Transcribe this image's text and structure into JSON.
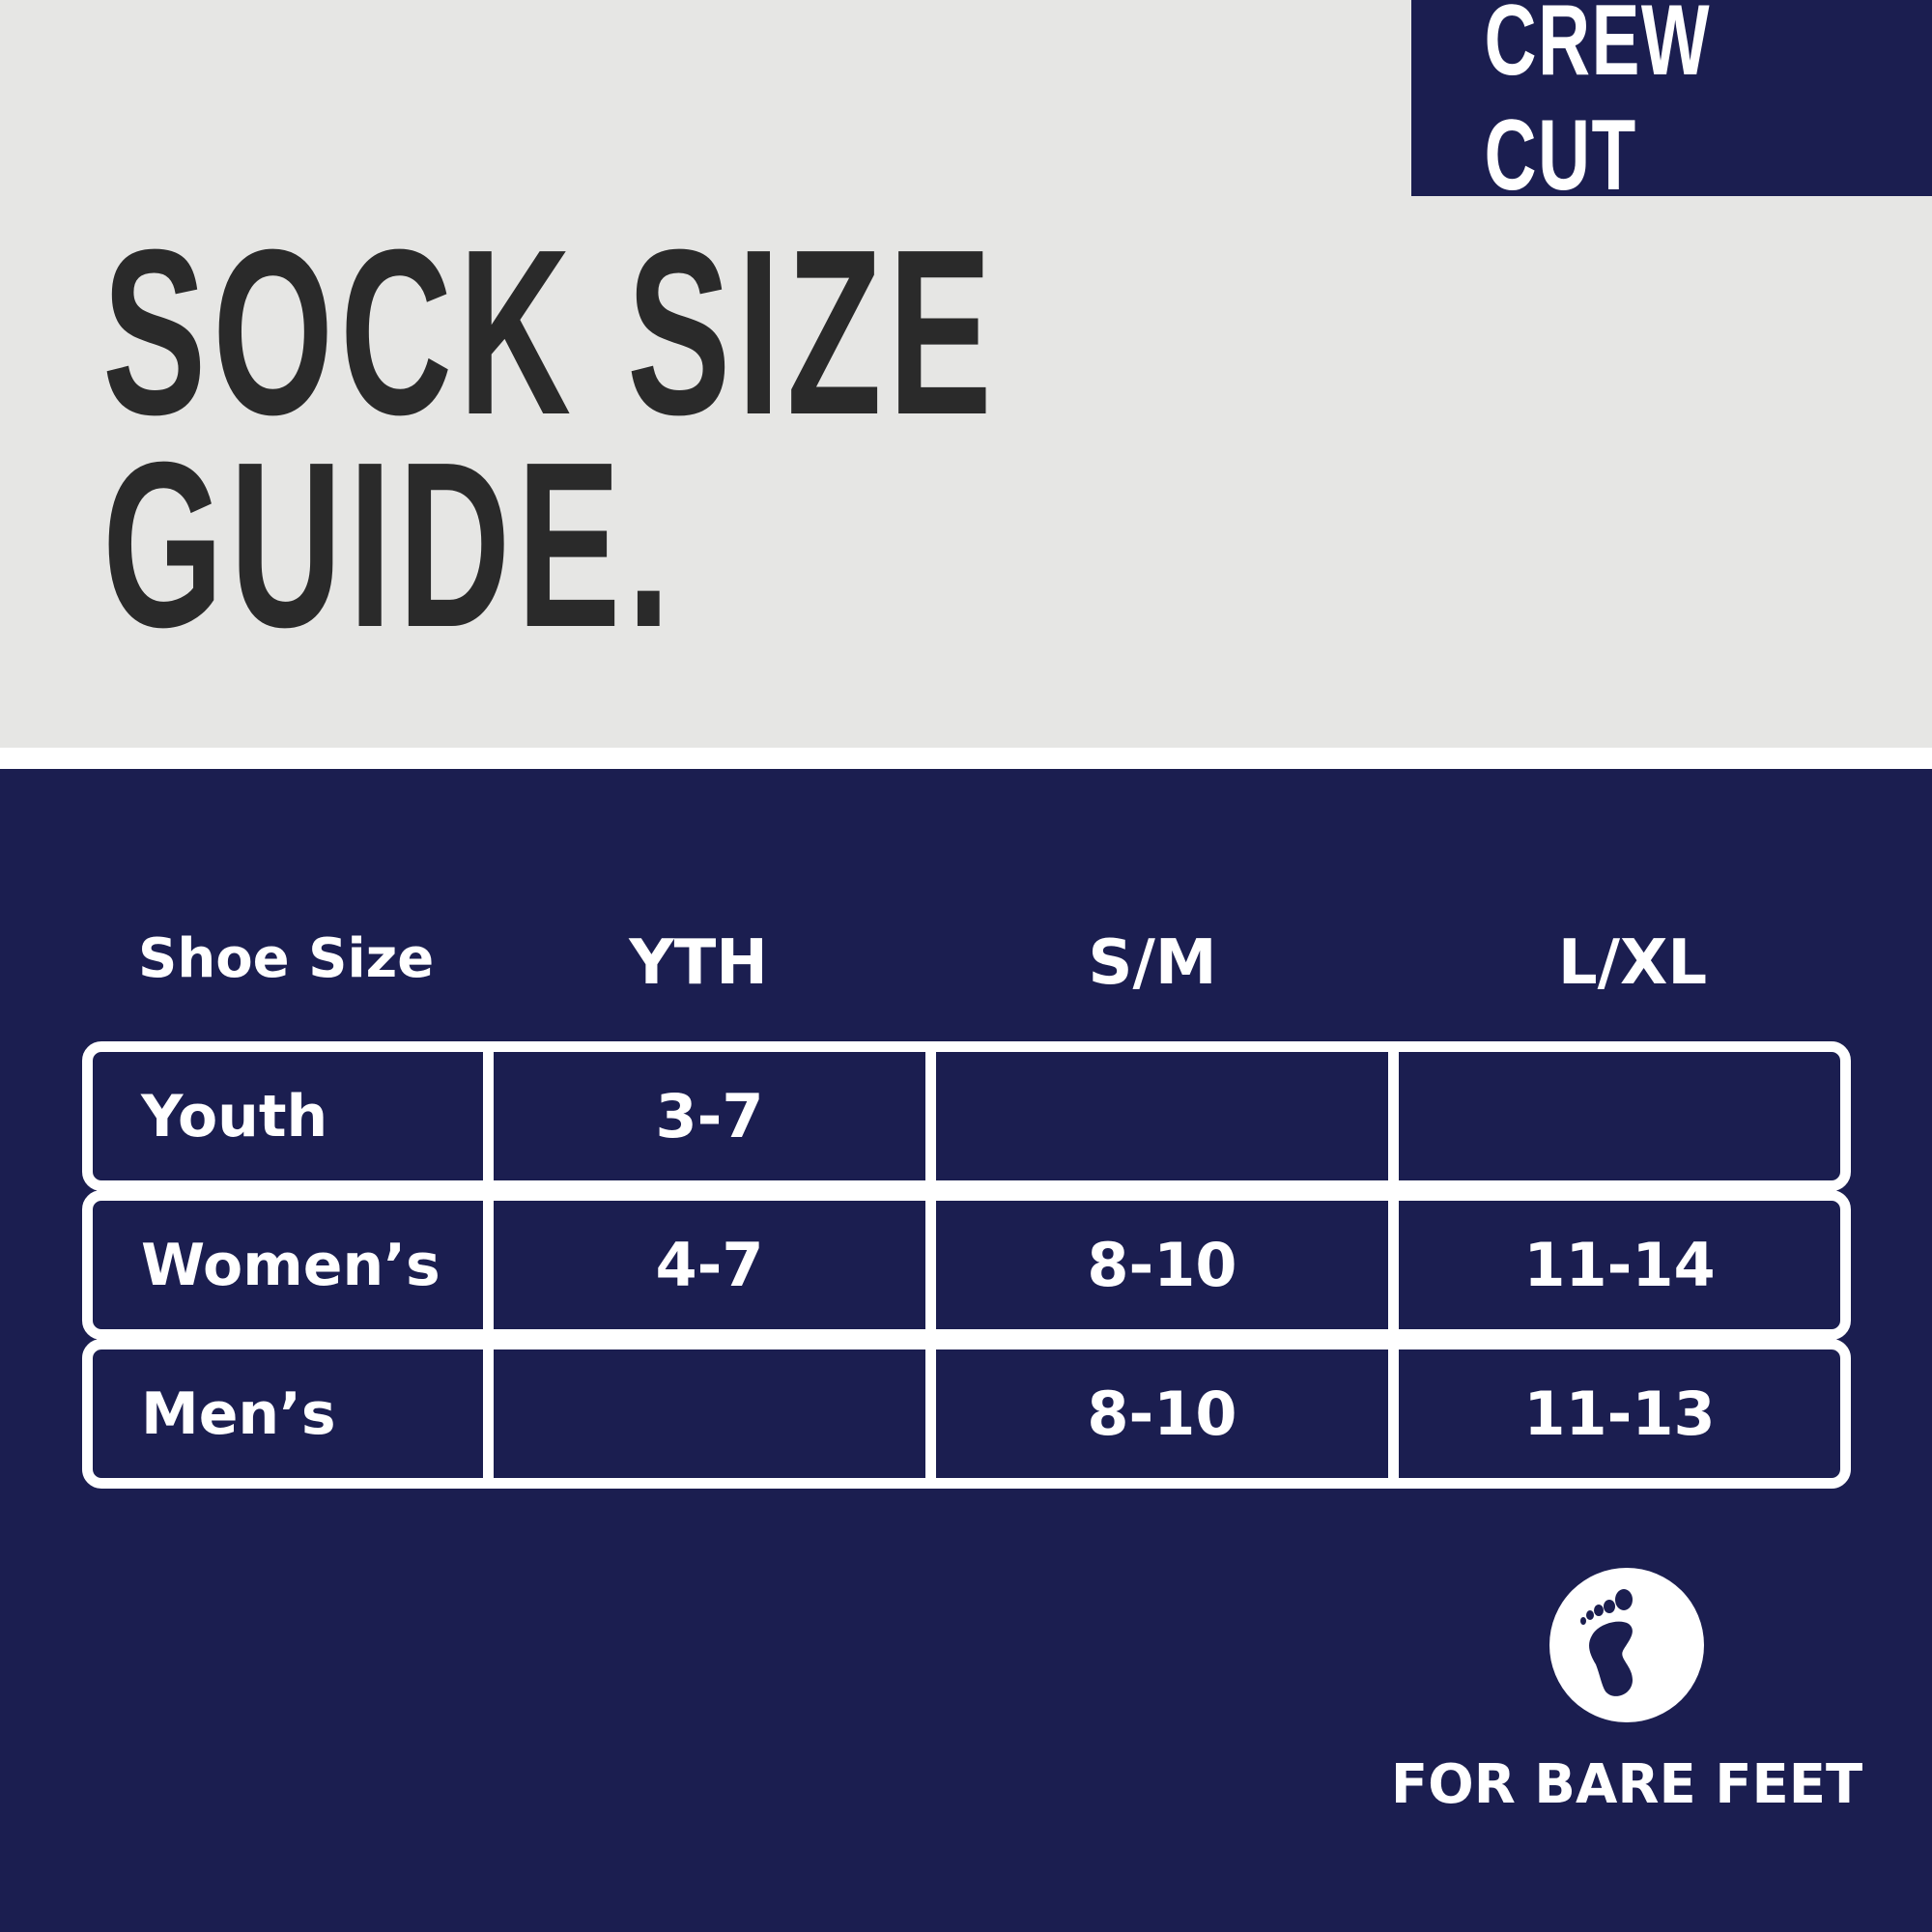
{
  "badge": "CREW CUT",
  "title": {
    "line1": "SOCK SIZE",
    "line2": "GUIDE."
  },
  "table": {
    "headers": [
      "Shoe Size",
      "YTH",
      "S/M",
      "L/XL"
    ],
    "rows": [
      {
        "label": "Youth",
        "values": [
          "3-7",
          "",
          ""
        ]
      },
      {
        "label": "Women’s",
        "values": [
          "4-7",
          "8-10",
          "11-14"
        ]
      },
      {
        "label": "Men’s",
        "values": [
          "",
          "8-10",
          "11-13"
        ]
      }
    ]
  },
  "footer": {
    "icon": "bare-foot-icon",
    "label": "FOR BARE FEET"
  },
  "colors": {
    "navy": "#1b1e50",
    "light": "#e6e6e4",
    "dark": "#2a2a2a"
  }
}
